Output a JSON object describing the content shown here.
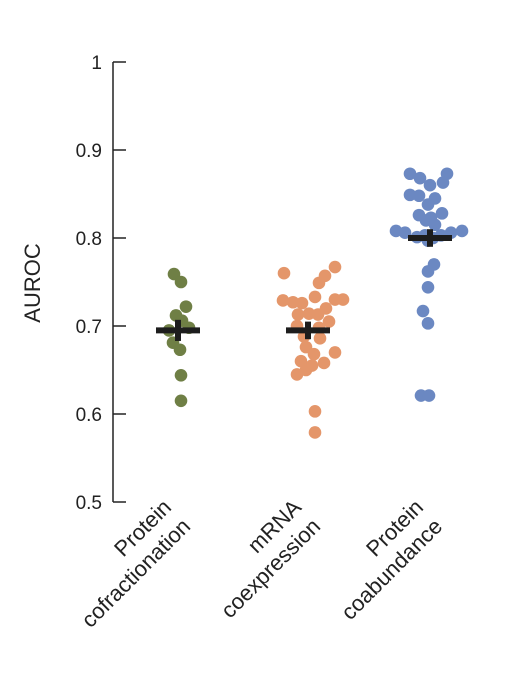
{
  "chart_data": {
    "type": "scatter",
    "subtype": "beeswarm with mean and error bars",
    "ylabel": "AUROC",
    "ylim": [
      0.5,
      1.0
    ],
    "yticks": [
      {
        "value": 0.5,
        "label": "0.5"
      },
      {
        "value": 0.6,
        "label": "0.6"
      },
      {
        "value": 0.7,
        "label": "0.7"
      },
      {
        "value": 0.8,
        "label": "0.8"
      },
      {
        "value": 0.9,
        "label": "0.9"
      },
      {
        "value": 1.0,
        "label": "1"
      }
    ],
    "grid": false,
    "legend": "none",
    "categories": [
      {
        "lines": [
          "Protein",
          "cofractionation"
        ]
      },
      {
        "lines": [
          "mRNA",
          "coexpression"
        ]
      },
      {
        "lines": [
          "Protein",
          "coabundance"
        ]
      }
    ],
    "series": [
      {
        "category_index": 0,
        "color": "#6f7f45",
        "mean": 0.695,
        "error": 0.012,
        "points": [
          {
            "y": 0.759,
            "offset": -4
          },
          {
            "y": 0.75,
            "offset": 3
          },
          {
            "y": 0.722,
            "offset": 8
          },
          {
            "y": 0.712,
            "offset": -2
          },
          {
            "y": 0.706,
            "offset": 4
          },
          {
            "y": 0.698,
            "offset": 11
          },
          {
            "y": 0.695,
            "offset": -9
          },
          {
            "y": 0.681,
            "offset": -5
          },
          {
            "y": 0.673,
            "offset": 2
          },
          {
            "y": 0.644,
            "offset": 3
          },
          {
            "y": 0.615,
            "offset": 3
          }
        ]
      },
      {
        "category_index": 1,
        "color": "#e4966a",
        "mean": 0.695,
        "error": 0.01,
        "points": [
          {
            "y": 0.767,
            "offset": 27
          },
          {
            "y": 0.76,
            "offset": -24
          },
          {
            "y": 0.757,
            "offset": 17
          },
          {
            "y": 0.749,
            "offset": 11
          },
          {
            "y": 0.73,
            "offset": 35
          },
          {
            "y": 0.73,
            "offset": 27
          },
          {
            "y": 0.733,
            "offset": 7
          },
          {
            "y": 0.729,
            "offset": -25
          },
          {
            "y": 0.727,
            "offset": -15
          },
          {
            "y": 0.726,
            "offset": -6
          },
          {
            "y": 0.72,
            "offset": 18
          },
          {
            "y": 0.714,
            "offset": 1
          },
          {
            "y": 0.713,
            "offset": -10
          },
          {
            "y": 0.713,
            "offset": 10
          },
          {
            "y": 0.705,
            "offset": 21
          },
          {
            "y": 0.7,
            "offset": -11
          },
          {
            "y": 0.698,
            "offset": 11
          },
          {
            "y": 0.688,
            "offset": -4
          },
          {
            "y": 0.686,
            "offset": 12
          },
          {
            "y": 0.676,
            "offset": -2
          },
          {
            "y": 0.67,
            "offset": 27
          },
          {
            "y": 0.668,
            "offset": 6
          },
          {
            "y": 0.66,
            "offset": -7
          },
          {
            "y": 0.658,
            "offset": 16
          },
          {
            "y": 0.655,
            "offset": 4
          },
          {
            "y": 0.65,
            "offset": -2
          },
          {
            "y": 0.645,
            "offset": -11
          },
          {
            "y": 0.603,
            "offset": 7
          },
          {
            "y": 0.579,
            "offset": 7
          }
        ]
      },
      {
        "category_index": 2,
        "color": "#6b88c2",
        "mean": 0.8,
        "error": 0.01,
        "points": [
          {
            "y": 0.873,
            "offset": -20
          },
          {
            "y": 0.873,
            "offset": 17
          },
          {
            "y": 0.868,
            "offset": -10
          },
          {
            "y": 0.863,
            "offset": 13
          },
          {
            "y": 0.86,
            "offset": 0
          },
          {
            "y": 0.849,
            "offset": -20
          },
          {
            "y": 0.848,
            "offset": -11
          },
          {
            "y": 0.845,
            "offset": 5
          },
          {
            "y": 0.838,
            "offset": -2
          },
          {
            "y": 0.828,
            "offset": 12
          },
          {
            "y": 0.826,
            "offset": -11
          },
          {
            "y": 0.823,
            "offset": 1
          },
          {
            "y": 0.82,
            "offset": -4
          },
          {
            "y": 0.815,
            "offset": 5
          },
          {
            "y": 0.808,
            "offset": -34
          },
          {
            "y": 0.808,
            "offset": 32
          },
          {
            "y": 0.806,
            "offset": -25
          },
          {
            "y": 0.806,
            "offset": 21
          },
          {
            "y": 0.803,
            "offset": -5
          },
          {
            "y": 0.803,
            "offset": 11
          },
          {
            "y": 0.801,
            "offset": -13
          },
          {
            "y": 0.8,
            "offset": 3
          },
          {
            "y": 0.797,
            "offset": -2
          },
          {
            "y": 0.77,
            "offset": 4
          },
          {
            "y": 0.762,
            "offset": -2
          },
          {
            "y": 0.744,
            "offset": -2
          },
          {
            "y": 0.717,
            "offset": -7
          },
          {
            "y": 0.703,
            "offset": -2
          },
          {
            "y": 0.621,
            "offset": -9
          },
          {
            "y": 0.621,
            "offset": -1
          }
        ]
      }
    ]
  }
}
